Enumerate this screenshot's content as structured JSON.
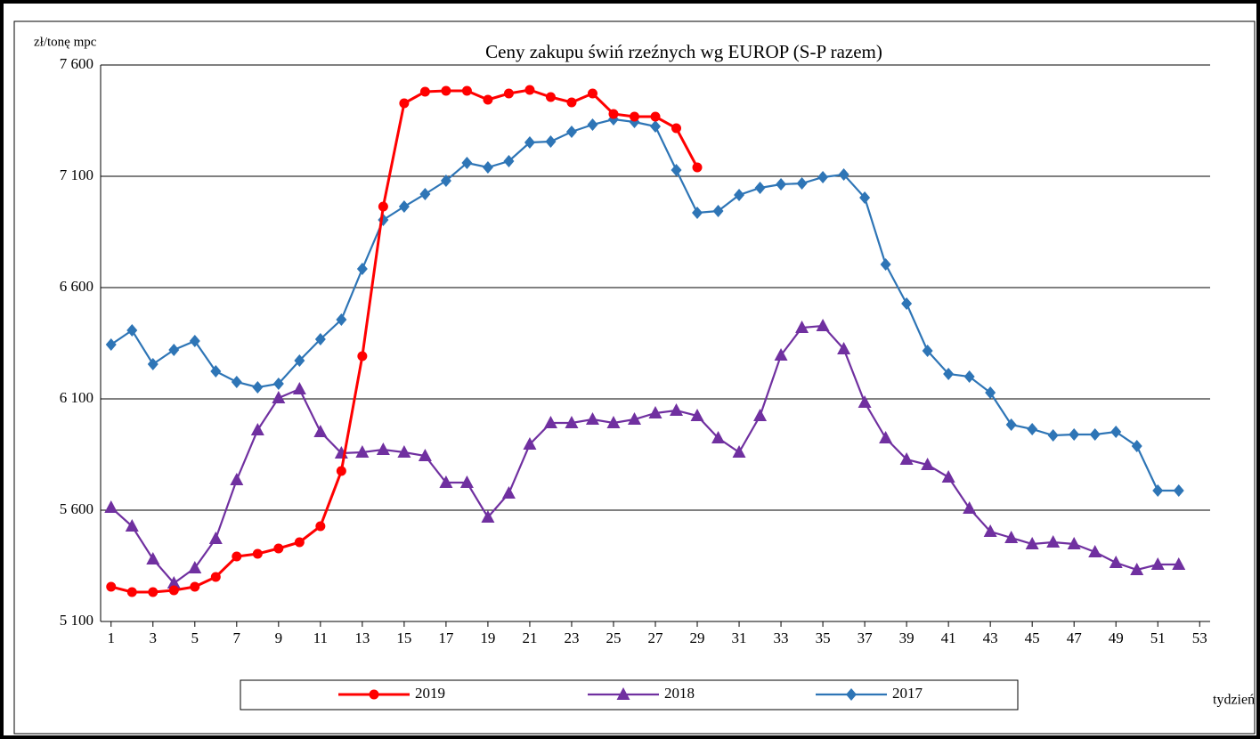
{
  "chart_data": {
    "type": "line",
    "title": "Ceny zakupu świń rzeźnych wg EUROP (S-P razem)",
    "y_label": "zł/tonę mpc",
    "x_label": "tydzień",
    "x": [
      1,
      2,
      3,
      4,
      5,
      6,
      7,
      8,
      9,
      10,
      11,
      12,
      13,
      14,
      15,
      16,
      17,
      18,
      19,
      20,
      21,
      22,
      23,
      24,
      25,
      26,
      27,
      28,
      29,
      30,
      31,
      32,
      33,
      34,
      35,
      36,
      37,
      38,
      39,
      40,
      41,
      42,
      43,
      44,
      45,
      46,
      47,
      48,
      49,
      50,
      51,
      52
    ],
    "xlim": [
      0.5,
      53.5
    ],
    "xticks": [
      1,
      3,
      5,
      7,
      9,
      11,
      13,
      15,
      17,
      19,
      21,
      23,
      25,
      27,
      29,
      31,
      33,
      35,
      37,
      39,
      41,
      43,
      45,
      47,
      49,
      51,
      53
    ],
    "ylim": [
      5100,
      7600
    ],
    "yticks": [
      {
        "value": 5100,
        "label": "5 100"
      },
      {
        "value": 5600,
        "label": "5 600"
      },
      {
        "value": 6100,
        "label": "6 100"
      },
      {
        "value": 6600,
        "label": "6 600"
      },
      {
        "value": 7100,
        "label": "7 100"
      },
      {
        "value": 7600,
        "label": "7 600"
      }
    ],
    "grid": true,
    "legend": "bottom",
    "series": [
      {
        "name": "2019",
        "color": "#ff0000",
        "marker": "circle",
        "values": [
          5256,
          5232,
          5232,
          5240,
          5256,
          5300,
          5392,
          5404,
          5428,
          5456,
          5528,
          5776,
          6292,
          6964,
          7428,
          7480,
          7484,
          7484,
          7444,
          7472,
          7488,
          7456,
          7432,
          7472,
          7380,
          7368,
          7368,
          7316,
          7140,
          null,
          null,
          null,
          null,
          null,
          null,
          null,
          null,
          null,
          null,
          null,
          null,
          null,
          null,
          null,
          null,
          null,
          null,
          null,
          null,
          null,
          null,
          null
        ]
      },
      {
        "name": "2018",
        "color": "#7030a0",
        "marker": "triangle",
        "values": [
          5612,
          5528,
          5380,
          5272,
          5340,
          5472,
          5736,
          5960,
          6104,
          6144,
          5952,
          5856,
          5860,
          5872,
          5860,
          5844,
          5724,
          5724,
          5568,
          5676,
          5896,
          5992,
          5992,
          6008,
          5992,
          6008,
          6036,
          6048,
          6024,
          5924,
          5860,
          6024,
          6296,
          6420,
          6428,
          6324,
          6084,
          5924,
          5828,
          5804,
          5748,
          5608,
          5504,
          5476,
          5448,
          5456,
          5448,
          5412,
          5364,
          5332,
          5356,
          5356
        ]
      },
      {
        "name": "2017",
        "color": "#2e75b6",
        "marker": "diamond",
        "values": [
          6344,
          6408,
          6256,
          6320,
          6360,
          6224,
          6176,
          6152,
          6168,
          6272,
          6368,
          6456,
          6684,
          6904,
          6964,
          7020,
          7080,
          7160,
          7140,
          7168,
          7252,
          7256,
          7300,
          7332,
          7356,
          7344,
          7324,
          7128,
          6936,
          6944,
          7016,
          7048,
          7064,
          7068,
          7096,
          7108,
          7004,
          6704,
          6528,
          6316,
          6212,
          6200,
          6128,
          5984,
          5964,
          5936,
          5940,
          5940,
          5952,
          5888,
          5688,
          5688
        ]
      }
    ]
  }
}
